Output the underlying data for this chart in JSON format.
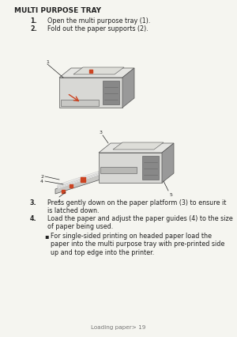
{
  "bg_color": "#f5f5f0",
  "page_bg": "#f5f5f0",
  "title": "Multi Purpose Tray",
  "title_bold_part": "MULTI PURPOSE TRAY",
  "step1_num": "1.",
  "step1_text": "Open the multi purpose tray (1).",
  "step2_num": "2.",
  "step2_text": "Fold out the paper supports (2).",
  "step3_num": "3.",
  "step3_text": "Press gently down on the paper platform (3) to ensure it\nis latched down.",
  "step4_num": "4.",
  "step4_text": "Load the paper and adjust the paper guides (4) to the size\nof paper being used.",
  "bullet_text": "For single-sided printing on headed paper load the\npaper into the multi purpose tray with pre-printed side\nup and top edge into the printer.",
  "footer": "Loading paper> 19",
  "body_fs": 5.8,
  "title_fs": 6.5,
  "footer_fs": 5.2,
  "text_color": "#333333",
  "dark_color": "#222222",
  "accent_red": "#cc4422",
  "printer_body": "#d8d8d5",
  "printer_dark": "#999999",
  "printer_edge": "#555555",
  "printer_top": "#e5e5e2",
  "paper_color": "#f0f0ee"
}
